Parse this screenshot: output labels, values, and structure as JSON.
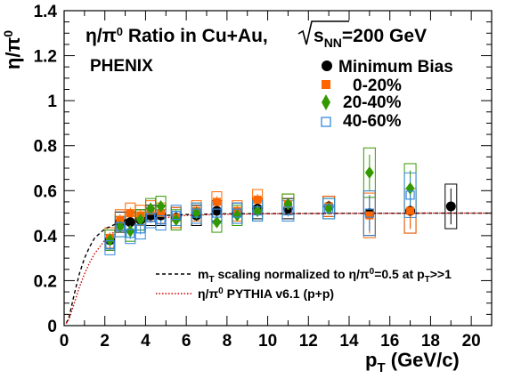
{
  "chart_data": {
    "type": "scatter",
    "title_text": "η/π",
    "title_sup": "0",
    "title_rest": " Ratio in Cu+Au,",
    "title_sqrt_s": "s",
    "title_sqrt_sub": "NN",
    "title_energy": "=200 GeV",
    "experiment": "PHENIX",
    "ylabel": "η/π",
    "ylabel_sup": "0",
    "xlabel_main": "p",
    "xlabel_sub": "T",
    "xlabel_unit": " (GeV/c)",
    "xlim": [
      0,
      21
    ],
    "ylim": [
      0,
      1.4
    ],
    "xticks": [
      "0",
      "2",
      "4",
      "6",
      "8",
      "10",
      "12",
      "14",
      "16",
      "18",
      "20"
    ],
    "yticks": [
      "0",
      "0.2",
      "0.4",
      "0.6",
      "0.8",
      "1",
      "1.2",
      "1.4"
    ],
    "series": [
      {
        "name": "Minimum Bias",
        "marker": "circle",
        "color": "#000000",
        "x": [
          2.25,
          2.75,
          3.25,
          3.75,
          4.25,
          4.75,
          5.5,
          6.5,
          7.5,
          8.5,
          9.5,
          11.0,
          13.0,
          15.0,
          17.0,
          19.0
        ],
        "y": [
          0.38,
          0.46,
          0.46,
          0.47,
          0.49,
          0.49,
          0.48,
          0.49,
          0.51,
          0.5,
          0.52,
          0.52,
          0.53,
          0.5,
          0.51,
          0.53
        ]
      },
      {
        "name": "0-20%",
        "marker": "square",
        "color": "#ff6600",
        "x": [
          2.25,
          2.75,
          3.25,
          3.75,
          4.25,
          4.75,
          5.5,
          6.5,
          7.5,
          8.5,
          9.5,
          11.0,
          13.0,
          15.0,
          17.0
        ],
        "y": [
          0.39,
          0.47,
          0.5,
          0.49,
          0.51,
          0.5,
          0.48,
          0.51,
          0.55,
          0.51,
          0.56,
          0.54,
          0.53,
          0.49,
          0.51
        ]
      },
      {
        "name": "20-40%",
        "marker": "diamond",
        "color": "#339900",
        "x": [
          2.25,
          2.75,
          3.25,
          3.75,
          4.25,
          4.75,
          5.5,
          6.5,
          7.5,
          8.5,
          9.5,
          11.0,
          13.0,
          15.0,
          17.0
        ],
        "y": [
          0.38,
          0.44,
          0.42,
          0.47,
          0.52,
          0.53,
          0.47,
          0.5,
          0.46,
          0.49,
          0.51,
          0.54,
          0.52,
          0.68,
          0.61
        ]
      },
      {
        "name": "40-60%",
        "marker": "open-square",
        "color": "#3388dd",
        "x": [
          2.25,
          2.75,
          3.25,
          3.75,
          4.25,
          4.75,
          5.5,
          6.5,
          7.5,
          8.5,
          9.5,
          11.0,
          13.0,
          15.0,
          17.0
        ],
        "y": [
          0.36,
          0.44,
          0.41,
          0.43,
          0.48,
          0.47,
          0.49,
          0.5,
          0.5,
          0.5,
          0.51,
          0.51,
          0.52,
          0.5,
          0.58
        ]
      }
    ],
    "curves": [
      {
        "name": "m_T scaling normalized to η/π0=0.5 at pT>>1",
        "legend_main": "m",
        "legend_sub": "T",
        "legend_rest": " scaling normalized to η/π",
        "legend_sup": "0",
        "legend_rest2": "=0.5 at p",
        "legend_sub2": "T",
        "legend_rest3": ">>1",
        "color": "#000000",
        "style": "dashed",
        "x": [
          0.1,
          0.25,
          0.5,
          0.75,
          1.0,
          1.25,
          1.5,
          1.75,
          2.0,
          2.5,
          3.0,
          4.0,
          5.0,
          6.0,
          8.0,
          10.0,
          14.0,
          18.0,
          21.0
        ],
        "y": [
          0.01,
          0.04,
          0.14,
          0.23,
          0.3,
          0.35,
          0.39,
          0.41,
          0.43,
          0.45,
          0.47,
          0.48,
          0.49,
          0.494,
          0.497,
          0.498,
          0.499,
          0.5,
          0.5
        ]
      },
      {
        "name": "η/π0 PYTHIA v6.1 (p+p)",
        "legend_main": "η/π",
        "legend_sup": "0",
        "legend_rest": " PYTHIA v6.1 (p+p)",
        "color": "#cc0000",
        "style": "dotted",
        "x": [
          0.1,
          0.25,
          0.5,
          0.75,
          1.0,
          1.25,
          1.5,
          2.0,
          2.5,
          3.0,
          4.0,
          5.0,
          6.0,
          8.0,
          10.0,
          14.0,
          18.0,
          21.0
        ],
        "y": [
          0.01,
          0.03,
          0.1,
          0.17,
          0.23,
          0.28,
          0.32,
          0.38,
          0.42,
          0.45,
          0.47,
          0.48,
          0.49,
          0.495,
          0.497,
          0.499,
          0.5,
          0.5
        ]
      }
    ],
    "legend_position": "top-right",
    "grid": false
  }
}
